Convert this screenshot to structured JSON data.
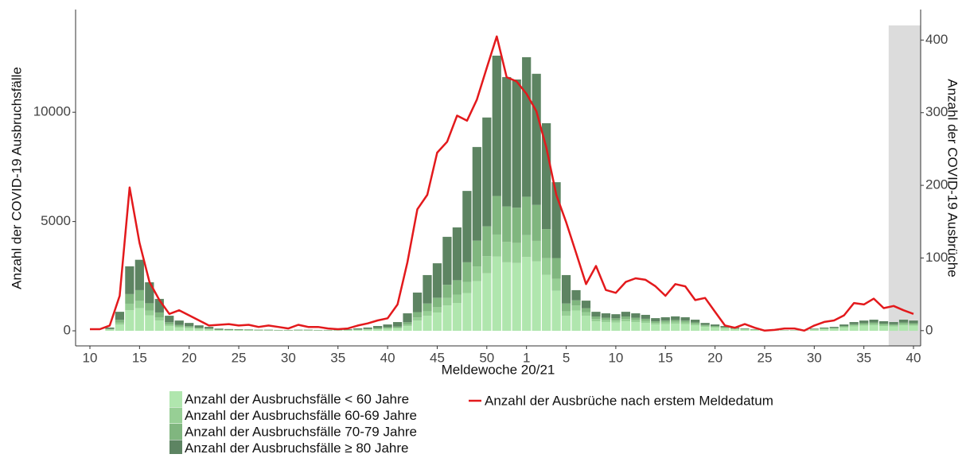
{
  "chart_data": {
    "type": "bar-line",
    "x_label": "Meldewoche 20/21",
    "y_label": "Anzahl der COVID-19 Ausbruchsfälle",
    "y2_label": "Anzahl der COVID-19 Ausbrüche",
    "categories": [
      "10",
      null,
      null,
      null,
      null,
      "15",
      null,
      null,
      null,
      null,
      "20",
      null,
      null,
      null,
      null,
      "25",
      null,
      null,
      null,
      null,
      "30",
      null,
      null,
      null,
      null,
      "35",
      null,
      null,
      null,
      null,
      "40",
      null,
      null,
      null,
      null,
      "45",
      null,
      null,
      null,
      null,
      "50",
      null,
      null,
      null,
      "1",
      null,
      null,
      null,
      "5",
      null,
      null,
      null,
      null,
      "10",
      null,
      null,
      null,
      null,
      "15",
      null,
      null,
      null,
      null,
      "20",
      null,
      null,
      null,
      null,
      "25",
      null,
      null,
      null,
      null,
      "30",
      null,
      null,
      null,
      null,
      "35",
      null,
      null,
      null,
      null,
      "40"
    ],
    "ylim": [
      -690,
      14700
    ],
    "yticks": [
      0,
      5000,
      10000
    ],
    "y2lim": [
      -21,
      442
    ],
    "y2ticks": [
      0,
      100,
      200,
      300,
      400
    ],
    "series": [
      {
        "name": "Anzahl der Ausbruchsfälle < 60 Jahre",
        "color": "#b0e6ae",
        "values": [
          0,
          0,
          50,
          280,
          940,
          1040,
          710,
          470,
          220,
          150,
          120,
          80,
          60,
          30,
          25,
          20,
          20,
          15,
          15,
          15,
          15,
          15,
          15,
          15,
          15,
          15,
          20,
          35,
          50,
          70,
          90,
          110,
          215,
          470,
          690,
          835,
          1160,
          1275,
          1730,
          2270,
          2635,
          3400,
          3135,
          3105,
          3380,
          3175,
          2565,
          1835,
          690,
          930,
          690,
          435,
          400,
          380,
          435,
          400,
          365,
          290,
          310,
          330,
          310,
          255,
          180,
          145,
          110,
          75,
          55,
          35,
          15,
          15,
          15,
          15,
          15,
          50,
          75,
          90,
          145,
          200,
          235,
          255,
          220,
          200,
          255,
          235
        ]
      },
      {
        "name": "Anzahl der Ausbruchsfälle 60-69 Jahre",
        "color": "#97cf95",
        "values": [
          0,
          0,
          15,
          90,
          300,
          330,
          220,
          150,
          70,
          50,
          40,
          25,
          20,
          10,
          10,
          10,
          5,
          5,
          5,
          5,
          5,
          5,
          5,
          5,
          5,
          5,
          10,
          10,
          15,
          20,
          30,
          30,
          65,
          140,
          205,
          245,
          345,
          380,
          510,
          675,
          780,
          1005,
          930,
          920,
          1000,
          940,
          760,
          545,
          205,
          225,
          165,
          105,
          95,
          90,
          105,
          95,
          90,
          70,
          75,
          80,
          75,
          60,
          45,
          35,
          25,
          20,
          15,
          10,
          5,
          5,
          5,
          5,
          5,
          10,
          20,
          20,
          35,
          50,
          55,
          60,
          55,
          50,
          60,
          55
        ]
      },
      {
        "name": "Anzahl der Ausbruchsfälle 70-79 Jahre",
        "color": "#80b67f",
        "values": [
          0,
          0,
          20,
          130,
          440,
          490,
          330,
          220,
          100,
          70,
          50,
          40,
          25,
          15,
          10,
          10,
          10,
          10,
          10,
          5,
          5,
          10,
          10,
          5,
          5,
          10,
          10,
          15,
          20,
          35,
          45,
          55,
          110,
          245,
          355,
          435,
          600,
          660,
          895,
          1180,
          1365,
          1765,
          1625,
          1610,
          1755,
          1645,
          1330,
          950,
          355,
          240,
          180,
          115,
          105,
          100,
          115,
          105,
          95,
          75,
          80,
          85,
          80,
          65,
          45,
          40,
          30,
          20,
          15,
          10,
          5,
          5,
          5,
          5,
          5,
          15,
          20,
          25,
          40,
          50,
          60,
          65,
          55,
          50,
          65,
          60
        ]
      },
      {
        "name": "Anzahl der Ausbruchsfälle ≥ 80 Jahre",
        "color": "#5d8462",
        "values": [
          0,
          0,
          65,
          370,
          1270,
          1390,
          960,
          620,
          300,
          200,
          150,
          105,
          75,
          45,
          35,
          30,
          25,
          20,
          20,
          15,
          15,
          20,
          20,
          15,
          15,
          20,
          30,
          50,
          65,
          95,
          125,
          205,
          410,
          895,
          1300,
          1575,
          2195,
          2415,
          3265,
          4285,
          4980,
          6420,
          5920,
          5865,
          6385,
          6000,
          4845,
          3470,
          1300,
          465,
          345,
          215,
          200,
          190,
          215,
          200,
          180,
          145,
          155,
          165,
          155,
          130,
          90,
          70,
          55,
          35,
          25,
          15,
          5,
          5,
          5,
          5,
          5,
          25,
          35,
          45,
          70,
          100,
          120,
          130,
          110,
          100,
          130,
          120
        ]
      },
      {
        "name": "Anzahl der Ausbrüche nach erstem Meldedatum",
        "color": "#e3191c",
        "axis": "y2",
        "values": [
          2,
          2,
          7,
          48,
          197,
          121,
          67,
          42,
          23,
          28,
          21,
          14,
          7,
          8,
          9,
          7,
          8,
          5,
          7,
          5,
          3,
          8,
          5,
          5,
          3,
          2,
          3,
          7,
          10,
          14,
          17,
          36,
          94,
          167,
          187,
          245,
          260,
          296,
          289,
          318,
          362,
          405,
          349,
          343,
          326,
          302,
          252,
          187,
          149,
          107,
          64,
          89,
          56,
          52,
          67,
          72,
          70,
          61,
          48,
          64,
          61,
          42,
          45,
          26,
          7,
          4,
          9,
          4,
          0,
          1,
          3,
          3,
          0,
          7,
          12,
          14,
          21,
          38,
          36,
          44,
          31,
          34,
          28,
          23
        ]
      }
    ]
  }
}
